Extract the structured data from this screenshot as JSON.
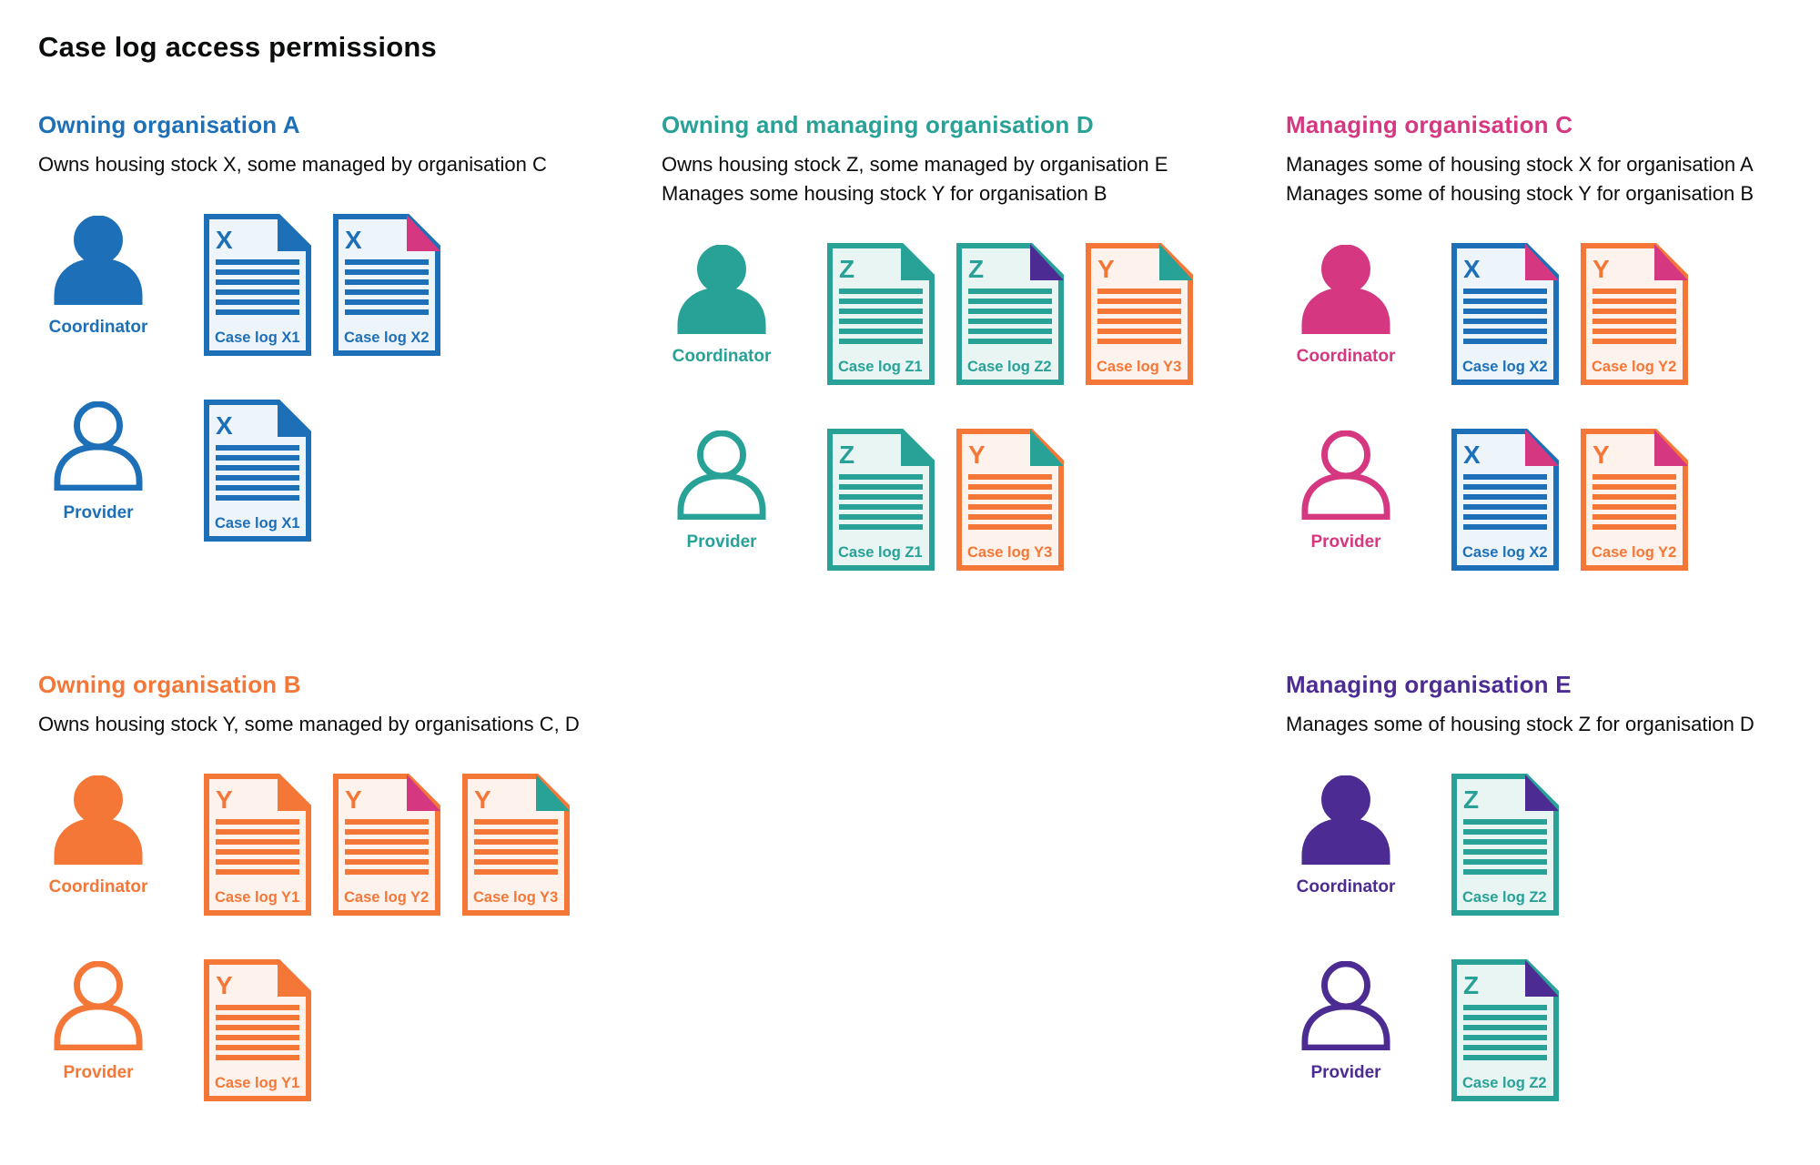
{
  "title": "Case log access permissions",
  "colors": {
    "blue": "#1d70b8",
    "teal": "#28a197",
    "pink": "#d53880",
    "orange": "#f47738",
    "purple": "#4c2c92",
    "text": "#0b0c0c",
    "background": "#ffffff",
    "doc_fills": {
      "blue": "#edf4fa",
      "teal": "#e9f5f2",
      "orange": "#fdf3ec"
    }
  },
  "sections": [
    {
      "id": "owning-organisation-a",
      "heading": "Owning organisation A",
      "color": "blue",
      "description": [
        "Owns housing stock X, some managed by organisation C"
      ],
      "rows": [
        {
          "role": "Coordinator",
          "variant": "filled",
          "docs": [
            {
              "letter": "X",
              "doc_color": "blue",
              "fold_color": "blue",
              "label": "Case log X1"
            },
            {
              "letter": "X",
              "doc_color": "blue",
              "fold_color": "pink",
              "label": "Case log X2"
            }
          ]
        },
        {
          "role": "Provider",
          "variant": "outline",
          "docs": [
            {
              "letter": "X",
              "doc_color": "blue",
              "fold_color": "blue",
              "label": "Case log X1"
            }
          ]
        }
      ]
    },
    {
      "id": "owning-and-managing-organisation-d",
      "heading": "Owning and managing organisation D",
      "color": "teal",
      "description": [
        "Owns housing stock Z, some managed by organisation E",
        "Manages some housing stock Y for organisation B"
      ],
      "rows": [
        {
          "role": "Coordinator",
          "variant": "filled",
          "docs": [
            {
              "letter": "Z",
              "doc_color": "teal",
              "fold_color": "teal",
              "label": "Case log Z1"
            },
            {
              "letter": "Z",
              "doc_color": "teal",
              "fold_color": "purple",
              "label": "Case log Z2"
            },
            {
              "letter": "Y",
              "doc_color": "orange",
              "fold_color": "teal",
              "label": "Case log Y3"
            }
          ]
        },
        {
          "role": "Provider",
          "variant": "outline",
          "docs": [
            {
              "letter": "Z",
              "doc_color": "teal",
              "fold_color": "teal",
              "label": "Case log Z1"
            },
            {
              "letter": "Y",
              "doc_color": "orange",
              "fold_color": "teal",
              "label": "Case log Y3"
            }
          ]
        }
      ]
    },
    {
      "id": "managing-organisation-c",
      "heading": "Managing organisation C",
      "color": "pink",
      "description": [
        "Manages some of housing stock X for organisation A",
        "Manages some of housing stock Y for organisation B"
      ],
      "rows": [
        {
          "role": "Coordinator",
          "variant": "filled",
          "docs": [
            {
              "letter": "X",
              "doc_color": "blue",
              "fold_color": "pink",
              "label": "Case log X2"
            },
            {
              "letter": "Y",
              "doc_color": "orange",
              "fold_color": "pink",
              "label": "Case log Y2"
            }
          ]
        },
        {
          "role": "Provider",
          "variant": "outline",
          "docs": [
            {
              "letter": "X",
              "doc_color": "blue",
              "fold_color": "pink",
              "label": "Case log X2"
            },
            {
              "letter": "Y",
              "doc_color": "orange",
              "fold_color": "pink",
              "label": "Case log Y2"
            }
          ]
        }
      ]
    },
    {
      "id": "owning-organisation-b",
      "heading": "Owning organisation B",
      "color": "orange",
      "description": [
        "Owns housing stock Y, some managed by organisations C, D"
      ],
      "rows": [
        {
          "role": "Coordinator",
          "variant": "filled",
          "docs": [
            {
              "letter": "Y",
              "doc_color": "orange",
              "fold_color": "orange",
              "label": "Case log Y1"
            },
            {
              "letter": "Y",
              "doc_color": "orange",
              "fold_color": "pink",
              "label": "Case log Y2"
            },
            {
              "letter": "Y",
              "doc_color": "orange",
              "fold_color": "teal",
              "label": "Case log Y3"
            }
          ]
        },
        {
          "role": "Provider",
          "variant": "outline",
          "docs": [
            {
              "letter": "Y",
              "doc_color": "orange",
              "fold_color": "orange",
              "label": "Case log Y1"
            }
          ]
        }
      ]
    },
    {
      "id": "managing-organisation-e",
      "heading": "Managing organisation E",
      "color": "purple",
      "description": [
        "Manages some of housing stock Z for organisation D"
      ],
      "rows": [
        {
          "role": "Coordinator",
          "variant": "filled",
          "docs": [
            {
              "letter": "Z",
              "doc_color": "teal",
              "fold_color": "purple",
              "label": "Case log Z2"
            }
          ]
        },
        {
          "role": "Provider",
          "variant": "outline",
          "docs": [
            {
              "letter": "Z",
              "doc_color": "teal",
              "fold_color": "purple",
              "label": "Case log Z2"
            }
          ]
        }
      ]
    }
  ]
}
